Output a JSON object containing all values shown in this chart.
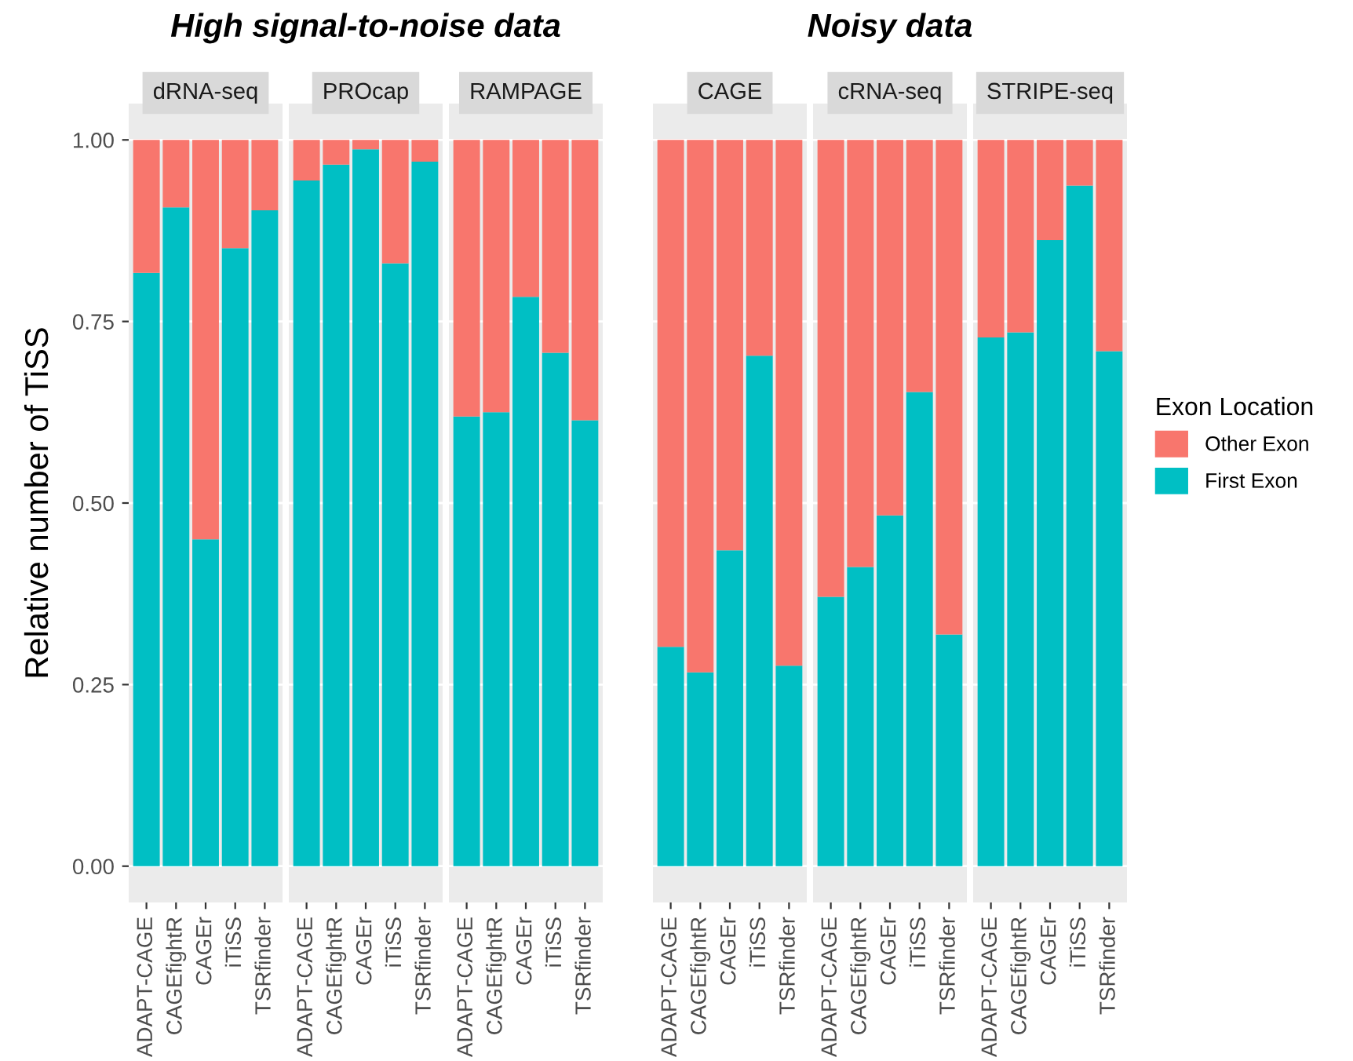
{
  "chart_data": [
    {
      "type": "bar",
      "title": "dRNA-seq",
      "ylabel": "Relative number of TiSS",
      "stacked": true,
      "categories": [
        "ADAPT-CAGE",
        "CAGEfightR",
        "CAGEr",
        "iTiSS",
        "TSRfinder"
      ],
      "series": [
        {
          "name": "First Exon",
          "color": "#00bfc4",
          "values": [
            0.817,
            0.907,
            0.45,
            0.851,
            0.903
          ]
        },
        {
          "name": "Other Exon",
          "color": "#f8766d",
          "values": [
            0.183,
            0.093,
            0.55,
            0.149,
            0.097
          ]
        }
      ],
      "ylim": [
        -0.05,
        1.05
      ],
      "yticks": [
        {
          "value": 0,
          "label": "0.00"
        },
        {
          "value": 0.25,
          "label": "0.25"
        },
        {
          "value": 0.5,
          "label": "0.50"
        },
        {
          "value": 0.75,
          "label": "0.75"
        },
        {
          "value": 1,
          "label": "1.00"
        }
      ],
      "grid": "y",
      "legend": "right",
      "legend_title": "Exon Location"
    },
    {
      "type": "bar",
      "title": "PROcap",
      "annotations": [
        "High signal-to-noise data"
      ],
      "stacked": true,
      "categories": [
        "ADAPT-CAGE",
        "CAGEfightR",
        "CAGEr",
        "iTiSS",
        "TSRfinder"
      ],
      "series": [
        {
          "color": "#00bfc4",
          "values": [
            0.944,
            0.966,
            0.987,
            0.83,
            0.97
          ]
        },
        {
          "color": "#f8766d",
          "values": [
            0.056,
            0.034,
            0.013,
            0.17,
            0.03
          ]
        }
      ],
      "ylim": [
        -0.05,
        1.05
      ],
      "yticks": [
        0,
        0.25,
        0.5,
        0.75,
        1
      ],
      "tick_labels": "x",
      "grid": "y"
    },
    {
      "type": "bar",
      "title": "RAMPAGE",
      "stacked": true,
      "categories": [
        "ADAPT-CAGE",
        "CAGEfightR",
        "CAGEr",
        "iTiSS",
        "TSRfinder"
      ],
      "series": [
        {
          "color": "#00bfc4",
          "values": [
            0.619,
            0.625,
            0.784,
            0.707,
            0.614
          ]
        },
        {
          "color": "#f8766d",
          "values": [
            0.381,
            0.375,
            0.216,
            0.293,
            0.386
          ]
        }
      ],
      "ylim": [
        -0.05,
        1.05
      ],
      "yticks": [
        0,
        0.25,
        0.5,
        0.75,
        1
      ],
      "tick_labels": "x",
      "grid": "y"
    },
    {
      "type": "bar",
      "title": "CAGE",
      "stacked": true,
      "categories": [
        "ADAPT-CAGE",
        "CAGEfightR",
        "CAGEr",
        "iTiSS",
        "TSRfinder"
      ],
      "series": [
        {
          "color": "#00bfc4",
          "values": [
            0.302,
            0.267,
            0.435,
            0.703,
            0.276
          ]
        },
        {
          "color": "#f8766d",
          "values": [
            0.698,
            0.733,
            0.565,
            0.297,
            0.724
          ]
        }
      ],
      "ylim": [
        -0.05,
        1.05
      ],
      "yticks": [
        0,
        0.25,
        0.5,
        0.75,
        1
      ],
      "tick_labels": "x",
      "grid": "y"
    },
    {
      "type": "bar",
      "title": "cRNA-seq",
      "annotations": [
        "Noisy data"
      ],
      "stacked": true,
      "categories": [
        "ADAPT-CAGE",
        "CAGEfightR",
        "CAGEr",
        "iTiSS",
        "TSRfinder"
      ],
      "series": [
        {
          "color": "#00bfc4",
          "values": [
            0.371,
            0.412,
            0.483,
            0.653,
            0.319
          ]
        },
        {
          "color": "#f8766d",
          "values": [
            0.629,
            0.588,
            0.517,
            0.347,
            0.681
          ]
        }
      ],
      "ylim": [
        -0.05,
        1.05
      ],
      "yticks": [
        0,
        0.25,
        0.5,
        0.75,
        1
      ],
      "tick_labels": "x",
      "grid": "y"
    },
    {
      "type": "bar",
      "title": "STRIPE-seq",
      "stacked": true,
      "categories": [
        "ADAPT-CAGE",
        "CAGEfightR",
        "CAGEr",
        "iTiSS",
        "TSRfinder"
      ],
      "series": [
        {
          "color": "#00bfc4",
          "values": [
            0.728,
            0.735,
            0.862,
            0.937,
            0.709
          ]
        },
        {
          "color": "#f8766d",
          "values": [
            0.272,
            0.265,
            0.138,
            0.063,
            0.291
          ]
        }
      ],
      "ylim": [
        -0.05,
        1.05
      ],
      "yticks": [
        0,
        0.25,
        0.5,
        0.75,
        1
      ],
      "tick_labels": "x",
      "grid": "y"
    }
  ]
}
